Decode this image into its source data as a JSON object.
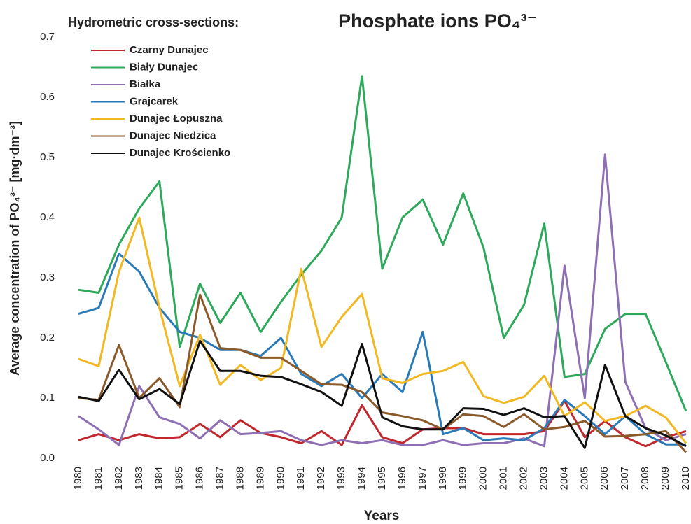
{
  "chart_data": {
    "type": "line",
    "title": "Phosphate ions PO₄³⁻",
    "legend_title": "Hydrometric cross-sections:",
    "x_label": "Years",
    "y_label": "Average concentration of PO₄³⁻ [mg·dm⁻³]",
    "categories": [
      "1980",
      "1981",
      "1982",
      "1983",
      "1984",
      "1985",
      "1986",
      "1987",
      "1988",
      "1989",
      "1990",
      "1991",
      "1992",
      "1993",
      "1994",
      "1995",
      "1996",
      "1997",
      "1998",
      "1999",
      "2000",
      "2001",
      "2002",
      "2003",
      "2004",
      "2005",
      "2006",
      "2007",
      "2008",
      "2009",
      "2010"
    ],
    "ylim": [
      0,
      0.7
    ],
    "yticks": [
      {
        "value": 0,
        "label": "0.0"
      },
      0.1,
      0.2,
      0.3,
      0.4,
      0.5,
      0.6,
      0.7
    ],
    "legend": "upper left",
    "series": [
      {
        "name": "Czarny Dunajec",
        "color": "#c0282d",
        "values": [
          0.03,
          0.04,
          0.03,
          0.04,
          0.033,
          0.035,
          0.057,
          0.035,
          0.063,
          0.042,
          0.035,
          0.025,
          0.045,
          0.022,
          0.088,
          0.035,
          0.025,
          0.048,
          0.05,
          0.05,
          0.04,
          0.04,
          0.04,
          0.045,
          0.095,
          0.035,
          0.062,
          0.035,
          0.02,
          0.035,
          0.045
        ]
      },
      {
        "name": "Biały Dunajec",
        "color": "#2ea85a",
        "values": [
          0.28,
          0.275,
          0.355,
          0.415,
          0.46,
          0.185,
          0.29,
          0.225,
          0.275,
          0.21,
          0.26,
          0.305,
          0.345,
          0.4,
          0.635,
          0.315,
          0.4,
          0.43,
          0.355,
          0.44,
          0.35,
          0.2,
          0.255,
          0.39,
          0.135,
          0.14,
          0.215,
          0.24,
          0.24,
          0.16,
          0.078
        ]
      },
      {
        "name": "Białka",
        "color": "#8e6fb3",
        "values": [
          0.07,
          0.048,
          0.022,
          0.12,
          0.068,
          0.057,
          0.033,
          0.063,
          0.04,
          0.042,
          0.045,
          0.03,
          0.022,
          0.03,
          0.025,
          0.03,
          0.022,
          0.022,
          0.03,
          0.022,
          0.025,
          0.025,
          0.033,
          0.02,
          0.32,
          0.1,
          0.505,
          0.127,
          0.05,
          0.03,
          0.04
        ]
      },
      {
        "name": "Grajcarek",
        "color": "#2a7ab8",
        "values": [
          0.24,
          0.25,
          0.34,
          0.31,
          0.25,
          0.21,
          0.2,
          0.18,
          0.18,
          0.17,
          0.2,
          0.14,
          0.12,
          0.14,
          0.1,
          0.14,
          0.11,
          0.21,
          0.04,
          0.05,
          0.03,
          0.033,
          0.03,
          0.05,
          0.097,
          0.07,
          0.04,
          0.07,
          0.04,
          0.023,
          0.023
        ]
      },
      {
        "name": "Dunajec Łopuszna",
        "color": "#f2b822",
        "values": [
          0.165,
          0.153,
          0.31,
          0.4,
          0.25,
          0.12,
          0.205,
          0.122,
          0.155,
          0.13,
          0.15,
          0.315,
          0.185,
          0.235,
          0.273,
          0.133,
          0.125,
          0.14,
          0.145,
          0.16,
          0.103,
          0.092,
          0.102,
          0.137,
          0.07,
          0.093,
          0.062,
          0.07,
          0.087,
          0.068,
          0.025
        ]
      },
      {
        "name": "Dunajec Niedzica",
        "color": "#8b5a2b",
        "values": [
          0.1,
          0.097,
          0.188,
          0.1,
          0.133,
          0.085,
          0.272,
          0.183,
          0.18,
          0.167,
          0.167,
          0.145,
          0.123,
          0.122,
          0.11,
          0.076,
          0.07,
          0.063,
          0.048,
          0.073,
          0.07,
          0.052,
          0.073,
          0.048,
          0.052,
          0.062,
          0.036,
          0.037,
          0.04,
          0.045,
          0.01
        ]
      },
      {
        "name": "Dunajec Krościenko",
        "color": "#111111",
        "values": [
          0.102,
          0.095,
          0.147,
          0.098,
          0.115,
          0.09,
          0.195,
          0.145,
          0.145,
          0.137,
          0.135,
          0.123,
          0.11,
          0.087,
          0.19,
          0.068,
          0.053,
          0.048,
          0.048,
          0.083,
          0.082,
          0.072,
          0.083,
          0.068,
          0.07,
          0.017,
          0.155,
          0.07,
          0.05,
          0.038,
          0.02
        ]
      }
    ]
  }
}
